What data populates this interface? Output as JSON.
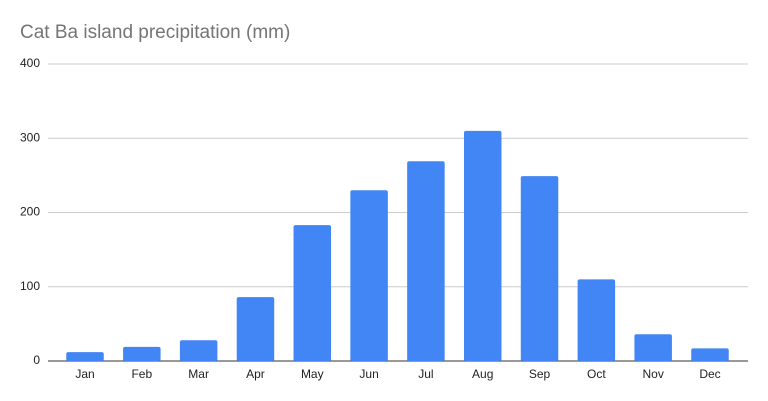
{
  "chart_data": {
    "type": "bar",
    "title": "Cat Ba island precipitation (mm)",
    "categories": [
      "Jan",
      "Feb",
      "Mar",
      "Apr",
      "May",
      "Jun",
      "Jul",
      "Aug",
      "Sep",
      "Oct",
      "Nov",
      "Dec"
    ],
    "values": [
      12,
      19,
      28,
      86,
      183,
      230,
      269,
      310,
      249,
      110,
      36,
      17
    ],
    "color": "#4285f4",
    "ylim": [
      0,
      400
    ],
    "yticks": [
      0,
      100,
      200,
      300,
      400
    ],
    "grid": true
  }
}
